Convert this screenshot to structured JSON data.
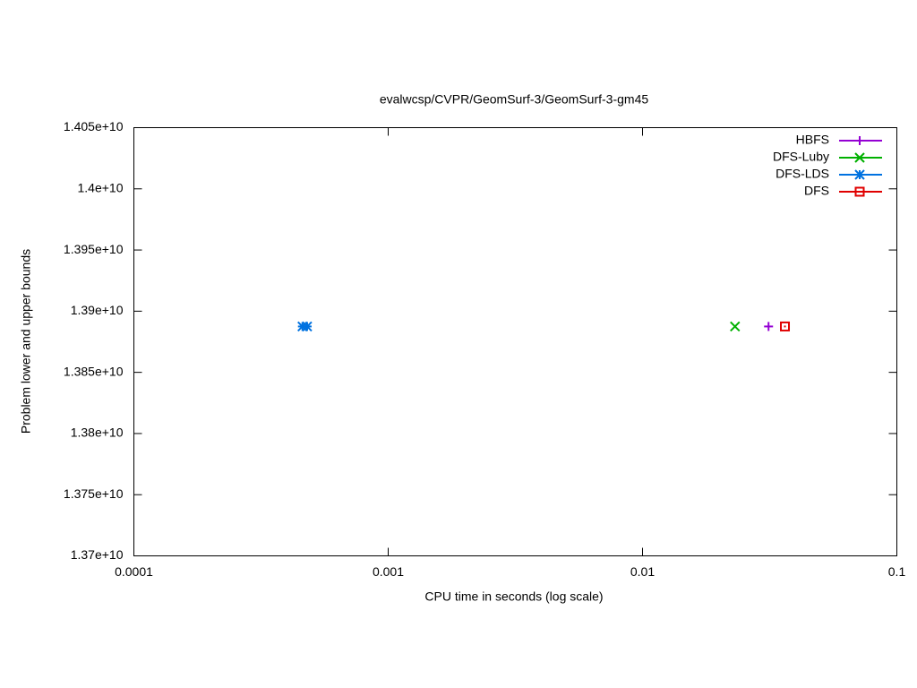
{
  "chart_data": {
    "type": "scatter",
    "title": "evalwcsp/CVPR/GeomSurf-3/GeomSurf-3-gm45",
    "xlabel": "CPU time in seconds (log scale)",
    "ylabel": "Problem lower and upper bounds",
    "xscale": "log",
    "xlim": [
      0.0001,
      0.1
    ],
    "xticks": [
      0.0001,
      0.001,
      0.01,
      0.1
    ],
    "ylim": [
      13700000000,
      14050000000
    ],
    "yticks": [
      {
        "value": 13700000000,
        "label": "1.37e+10"
      },
      {
        "value": 13750000000,
        "label": "1.375e+10"
      },
      {
        "value": 13800000000,
        "label": "1.38e+10"
      },
      {
        "value": 13850000000,
        "label": "1.385e+10"
      },
      {
        "value": 13900000000,
        "label": "1.39e+10"
      },
      {
        "value": 13950000000,
        "label": "1.395e+10"
      },
      {
        "value": 14000000000,
        "label": "1.4e+10"
      },
      {
        "value": 14050000000,
        "label": "1.405e+10"
      }
    ],
    "legend": "top-right",
    "series": [
      {
        "name": "HBFS",
        "color": "#9400d3",
        "marker": "plus",
        "x": [
          0.0313
        ],
        "values": [
          13887500000
        ]
      },
      {
        "name": "DFS-Luby",
        "color": "#00b000",
        "marker": "cross",
        "x": [
          0.0231
        ],
        "values": [
          13887500000
        ]
      },
      {
        "name": "DFS-LDS",
        "color": "#0072e0",
        "marker": "star",
        "x": [
          0.00046,
          0.00048
        ],
        "values": [
          13887500000,
          13887500000
        ]
      },
      {
        "name": "DFS",
        "color": "#e00000",
        "marker": "box",
        "x": [
          0.0363
        ],
        "values": [
          13887500000
        ]
      }
    ]
  }
}
